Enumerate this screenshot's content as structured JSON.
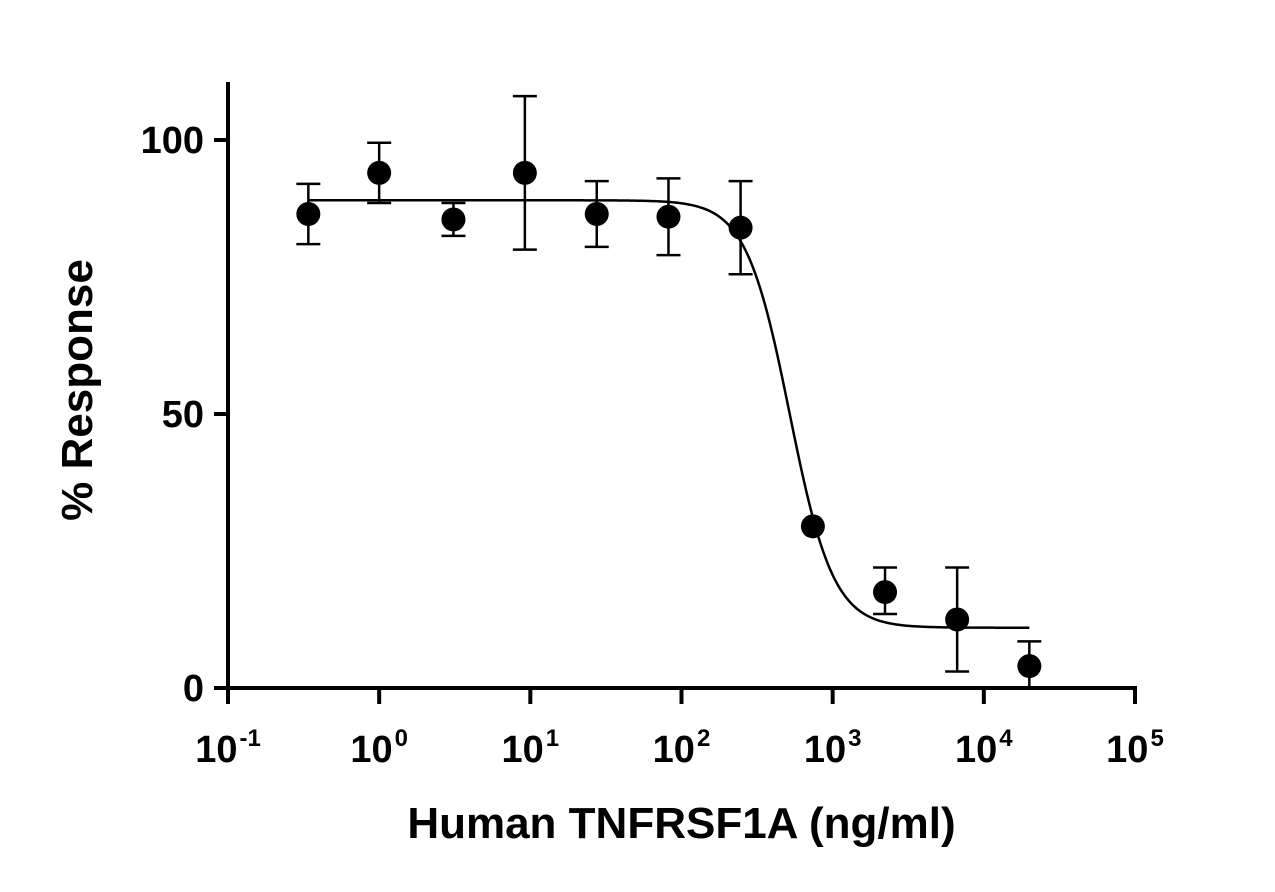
{
  "chart_data": {
    "type": "scatter",
    "xlabel": "Human TNFRSF1A (ng/ml)",
    "ylabel": "% Response",
    "x_scale": "log",
    "xlim": [
      0.1,
      100000
    ],
    "ylim": [
      0,
      110
    ],
    "x_ticks": [
      {
        "base": "10",
        "exp": "-1",
        "value": 0.1
      },
      {
        "base": "10",
        "exp": "0",
        "value": 1
      },
      {
        "base": "10",
        "exp": "1",
        "value": 10
      },
      {
        "base": "10",
        "exp": "2",
        "value": 100
      },
      {
        "base": "10",
        "exp": "3",
        "value": 1000
      },
      {
        "base": "10",
        "exp": "4",
        "value": 10000
      },
      {
        "base": "10",
        "exp": "5",
        "value": 100000
      }
    ],
    "y_ticks": [
      {
        "label": "0",
        "value": 0
      },
      {
        "label": "50",
        "value": 50
      },
      {
        "label": "100",
        "value": 100
      }
    ],
    "points": [
      {
        "x": 0.34,
        "y": 86.5,
        "err_low": 81,
        "err_high": 92
      },
      {
        "x": 1.0,
        "y": 94.0,
        "err_low": 88.5,
        "err_high": 99.5
      },
      {
        "x": 3.1,
        "y": 85.5,
        "err_low": 82.5,
        "err_high": 88.5
      },
      {
        "x": 9.2,
        "y": 94.0,
        "err_low": 80,
        "err_high": 108
      },
      {
        "x": 27.5,
        "y": 86.5,
        "err_low": 80.5,
        "err_high": 92.5
      },
      {
        "x": 82,
        "y": 86.0,
        "err_low": 79,
        "err_high": 93
      },
      {
        "x": 246,
        "y": 84.0,
        "err_low": 75.5,
        "err_high": 92.5
      },
      {
        "x": 740,
        "y": 29.5,
        "err_low": 29.5,
        "err_high": 29.5
      },
      {
        "x": 2220,
        "y": 17.5,
        "err_low": 13.5,
        "err_high": 22
      },
      {
        "x": 6660,
        "y": 12.5,
        "err_low": 3,
        "err_high": 22
      },
      {
        "x": 20000,
        "y": 4.0,
        "err_low": 0,
        "err_high": 8.5
      }
    ],
    "fit": {
      "model": "4PL",
      "top": 89,
      "bottom": 11,
      "ec50": 520,
      "hill": 3,
      "x_range": [
        0.34,
        20000
      ]
    },
    "grid": false,
    "legend": "none"
  }
}
